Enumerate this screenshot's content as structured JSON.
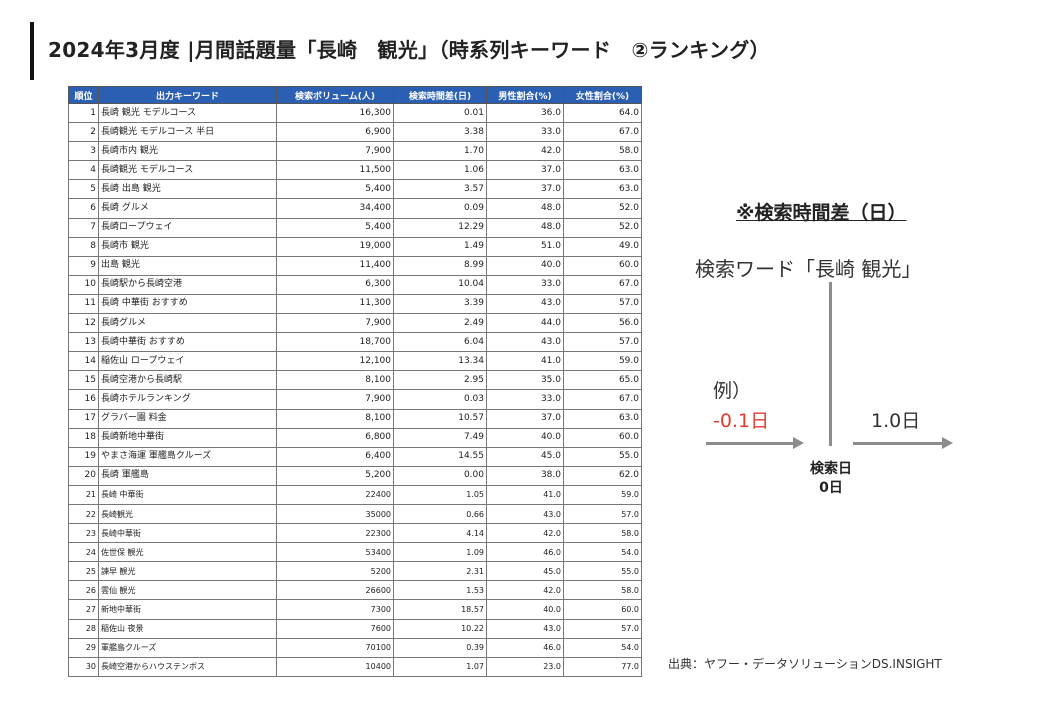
{
  "title": "2024年3月度 |月間話題量「長崎　観光」（時系列キーワード　②ランキング）",
  "table": {
    "headers": [
      "順位",
      "出力キーワード",
      "検索ボリューム(人)",
      "検索時間差(日)",
      "男性割合(%)",
      "女性割合(%)"
    ],
    "rows": [
      [
        "1",
        "長崎 観光 モデルコース",
        "16,300",
        "0.01",
        "36.0",
        "64.0"
      ],
      [
        "2",
        "長崎観光 モデルコース 半日",
        "6,900",
        "3.38",
        "33.0",
        "67.0"
      ],
      [
        "3",
        "長崎市内 観光",
        "7,900",
        "1.70",
        "42.0",
        "58.0"
      ],
      [
        "4",
        "長崎観光 モデルコース",
        "11,500",
        "1.06",
        "37.0",
        "63.0"
      ],
      [
        "5",
        "長崎 出島 観光",
        "5,400",
        "3.57",
        "37.0",
        "63.0"
      ],
      [
        "6",
        "長崎 グルメ",
        "34,400",
        "0.09",
        "48.0",
        "52.0"
      ],
      [
        "7",
        "長崎ロープウェイ",
        "5,400",
        "12.29",
        "48.0",
        "52.0"
      ],
      [
        "8",
        "長崎市 観光",
        "19,000",
        "1.49",
        "51.0",
        "49.0"
      ],
      [
        "9",
        "出島 観光",
        "11,400",
        "8.99",
        "40.0",
        "60.0"
      ],
      [
        "10",
        "長崎駅から長崎空港",
        "6,300",
        "10.04",
        "33.0",
        "67.0"
      ],
      [
        "11",
        "長崎 中華街 おすすめ",
        "11,300",
        "3.39",
        "43.0",
        "57.0"
      ],
      [
        "12",
        "長崎グルメ",
        "7,900",
        "2.49",
        "44.0",
        "56.0"
      ],
      [
        "13",
        "長崎中華街 おすすめ",
        "18,700",
        "6.04",
        "43.0",
        "57.0"
      ],
      [
        "14",
        "稲佐山 ロープウェイ",
        "12,100",
        "13.34",
        "41.0",
        "59.0"
      ],
      [
        "15",
        "長崎空港から長崎駅",
        "8,100",
        "2.95",
        "35.0",
        "65.0"
      ],
      [
        "16",
        "長崎ホテルランキング",
        "7,900",
        "0.03",
        "33.0",
        "67.0"
      ],
      [
        "17",
        "グラバー園 料金",
        "8,100",
        "10.57",
        "37.0",
        "63.0"
      ],
      [
        "18",
        "長崎新地中華街",
        "6,800",
        "7.49",
        "40.0",
        "60.0"
      ],
      [
        "19",
        "やまさ海運 軍艦島クルーズ",
        "6,400",
        "14.55",
        "45.0",
        "55.0"
      ],
      [
        "20",
        "長崎 軍艦島",
        "5,200",
        "0.00",
        "38.0",
        "62.0"
      ],
      [
        "21",
        "長崎 中華街",
        "22400",
        "1.05",
        "41.0",
        "59.0"
      ],
      [
        "22",
        "長崎観光",
        "35000",
        "0.66",
        "43.0",
        "57.0"
      ],
      [
        "23",
        "長崎中華街",
        "22300",
        "4.14",
        "42.0",
        "58.0"
      ],
      [
        "24",
        "佐世保 観光",
        "53400",
        "1.09",
        "46.0",
        "54.0"
      ],
      [
        "25",
        "諫早 観光",
        "5200",
        "2.31",
        "45.0",
        "55.0"
      ],
      [
        "26",
        "雲仙 観光",
        "26600",
        "1.53",
        "42.0",
        "58.0"
      ],
      [
        "27",
        "新地中華街",
        "7300",
        "18.57",
        "40.0",
        "60.0"
      ],
      [
        "28",
        "稲佐山 夜景",
        "7600",
        "10.22",
        "43.0",
        "57.0"
      ],
      [
        "29",
        "軍艦島クルーズ",
        "70100",
        "0.39",
        "46.0",
        "54.0"
      ],
      [
        "30",
        "長崎空港からハウステンボス",
        "10400",
        "1.07",
        "23.0",
        "77.0"
      ]
    ]
  },
  "legend": {
    "title": "※検索時間差（日）",
    "search_word": "検索ワード「長崎 観光」",
    "example_label": "例）",
    "negative_value": "-0.1日",
    "positive_value": "1.0日",
    "day_label_line1": "検索日",
    "day_label_line2": "0日",
    "negative_color": "#e03c31"
  },
  "source": "出典：ヤフー・データソリューションDS.INSIGHT",
  "colors": {
    "header_bg": "#2b5fb4",
    "header_text": "#ffffff",
    "arrow": "#8c8c8c"
  }
}
